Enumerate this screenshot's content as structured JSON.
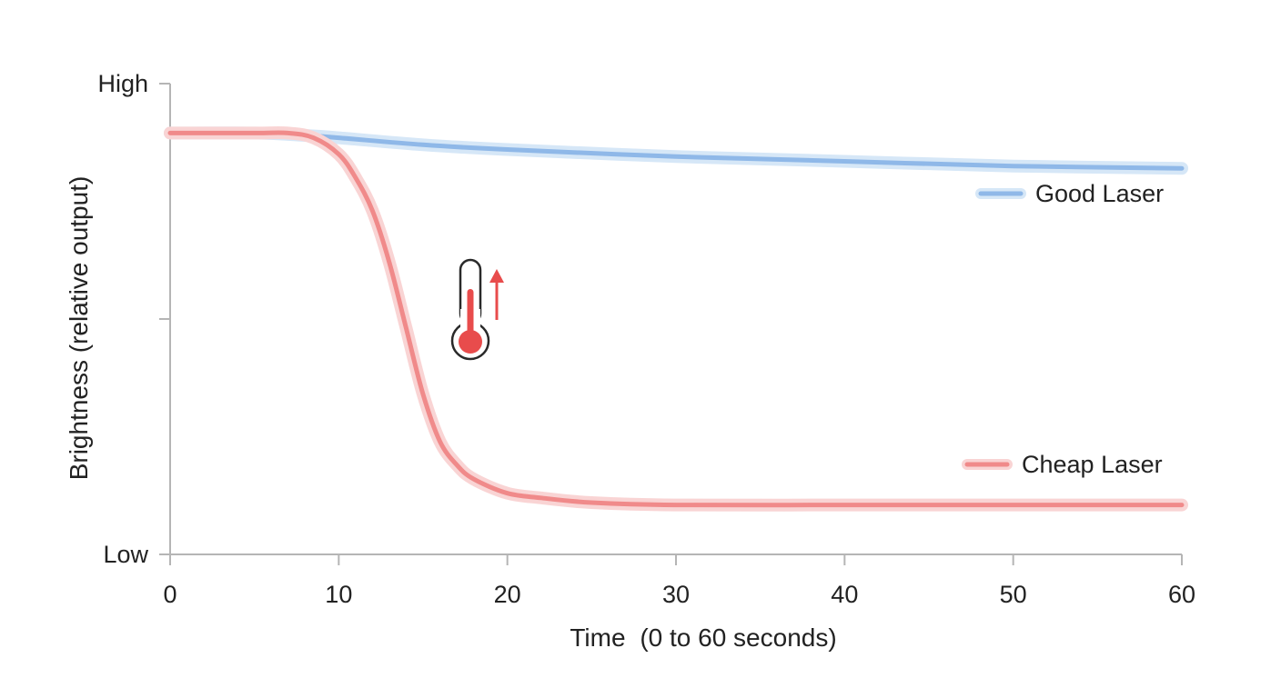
{
  "chart_data": {
    "type": "line",
    "title": "",
    "xlabel_main": "Time",
    "xlabel_sub": "(0 to 60 seconds)",
    "ylabel": "Brightness (relative output)",
    "y_level_labels": {
      "high": "High",
      "low": "Low"
    },
    "xlim": [
      0,
      60
    ],
    "ylim": [
      0,
      1
    ],
    "x_ticks": [
      0,
      10,
      20,
      30,
      40,
      50,
      60
    ],
    "grid": false,
    "legend_placement": "inline-right",
    "series": [
      {
        "name": "Good Laser",
        "color": "#8fb8e8",
        "glow": "#d6e7f7",
        "x": [
          0,
          5,
          8,
          10,
          15,
          20,
          30,
          40,
          50,
          60
        ],
        "y": [
          0.895,
          0.895,
          0.89,
          0.885,
          0.87,
          0.86,
          0.845,
          0.835,
          0.825,
          0.82
        ]
      },
      {
        "name": "Cheap Laser",
        "color": "#f08a8a",
        "glow": "#f9d4d4",
        "x": [
          0,
          5,
          7,
          8.5,
          10,
          11,
          12,
          13,
          14,
          15,
          16,
          17,
          18,
          20,
          22,
          25,
          30,
          40,
          50,
          60
        ],
        "y": [
          0.895,
          0.895,
          0.895,
          0.885,
          0.85,
          0.8,
          0.73,
          0.62,
          0.48,
          0.34,
          0.24,
          0.19,
          0.16,
          0.13,
          0.12,
          0.11,
          0.105,
          0.105,
          0.105,
          0.105
        ]
      }
    ],
    "annotations": [
      {
        "type": "thermometer-icon",
        "meaning": "temperature rising",
        "arrow": "up",
        "color": "#e84c4c"
      }
    ]
  }
}
